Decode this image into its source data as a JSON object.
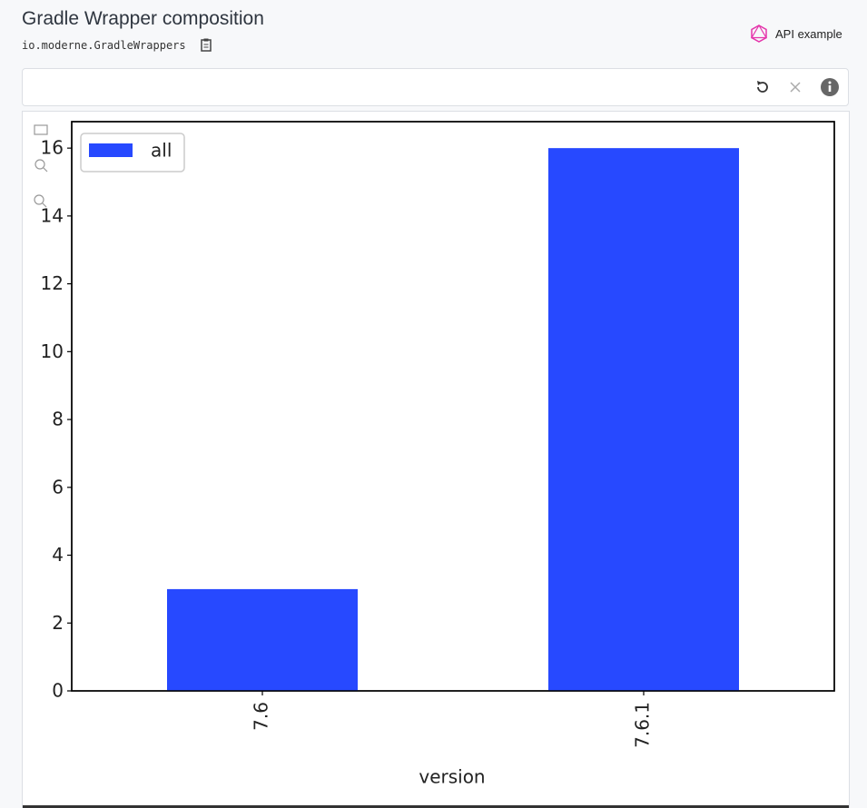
{
  "header": {
    "title": "Gradle Wrapper composition",
    "subtitle": "io.moderne.GradleWrappers",
    "api_link": "API example"
  },
  "chart_data": {
    "type": "bar",
    "categories": [
      "7.6",
      "7.6.1"
    ],
    "series": [
      {
        "name": "all",
        "color": "#2749ff",
        "values": [
          3,
          16
        ]
      }
    ],
    "xlabel": "version",
    "ylim": [
      0,
      16.78
    ],
    "yticks": [
      0,
      2,
      4,
      6,
      8,
      10,
      12,
      14,
      16
    ],
    "legend": "upper left"
  }
}
